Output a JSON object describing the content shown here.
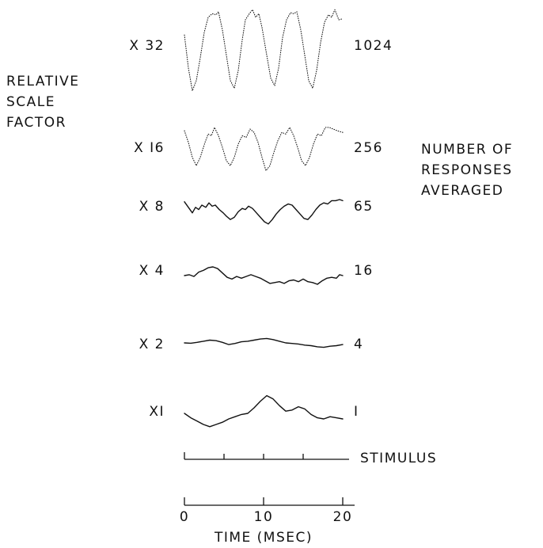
{
  "chart_data": {
    "type": "line",
    "left_title": [
      "RELATIVE",
      "SCALE",
      "FACTOR"
    ],
    "right_title": [
      "NUMBER OF",
      "RESPONSES",
      "AVERAGED"
    ],
    "xlabel": "TIME (MSEC)",
    "xlim": [
      0,
      20
    ],
    "x_ticks": [
      "0",
      "10",
      "20"
    ],
    "stimulus_label": "STIMULUS",
    "stimulus_ticks_ms": [
      5,
      10,
      15
    ],
    "series": [
      {
        "scale_label": "X 32",
        "count_label": "1024",
        "points": [
          [
            0,
            0.2
          ],
          [
            0.5,
            -0.45
          ],
          [
            1,
            -0.9
          ],
          [
            1.5,
            -0.7
          ],
          [
            2,
            -0.25
          ],
          [
            2.5,
            0.25
          ],
          [
            3,
            0.55
          ],
          [
            3.5,
            0.62
          ],
          [
            4,
            0.6
          ],
          [
            4.3,
            0.66
          ],
          [
            4.8,
            0.3
          ],
          [
            5.3,
            -0.2
          ],
          [
            5.8,
            -0.7
          ],
          [
            6.3,
            -0.85
          ],
          [
            6.8,
            -0.5
          ],
          [
            7.3,
            0.1
          ],
          [
            7.7,
            0.5
          ],
          [
            8.2,
            0.62
          ],
          [
            8.6,
            0.7
          ],
          [
            9,
            0.55
          ],
          [
            9.4,
            0.62
          ],
          [
            9.8,
            0.35
          ],
          [
            10.4,
            -0.2
          ],
          [
            10.9,
            -0.65
          ],
          [
            11.4,
            -0.8
          ],
          [
            11.9,
            -0.45
          ],
          [
            12.4,
            0.15
          ],
          [
            12.9,
            0.5
          ],
          [
            13.4,
            0.64
          ],
          [
            13.8,
            0.62
          ],
          [
            14.2,
            0.66
          ],
          [
            14.7,
            0.3
          ],
          [
            15.2,
            -0.2
          ],
          [
            15.7,
            -0.7
          ],
          [
            16.2,
            -0.85
          ],
          [
            16.7,
            -0.5
          ],
          [
            17.2,
            0.05
          ],
          [
            17.7,
            0.45
          ],
          [
            18.2,
            0.6
          ],
          [
            18.6,
            0.55
          ],
          [
            19,
            0.7
          ],
          [
            19.5,
            0.5
          ],
          [
            20,
            0.52
          ]
        ]
      },
      {
        "scale_label": "X I6",
        "count_label": "256",
        "points": [
          [
            0,
            0.45
          ],
          [
            0.5,
            0.1
          ],
          [
            1,
            -0.35
          ],
          [
            1.5,
            -0.6
          ],
          [
            2,
            -0.35
          ],
          [
            2.6,
            0.1
          ],
          [
            3,
            0.35
          ],
          [
            3.4,
            0.3
          ],
          [
            3.8,
            0.55
          ],
          [
            4.3,
            0.3
          ],
          [
            4.8,
            -0.05
          ],
          [
            5.3,
            -0.45
          ],
          [
            5.8,
            -0.6
          ],
          [
            6.3,
            -0.35
          ],
          [
            6.8,
            0.05
          ],
          [
            7.3,
            0.3
          ],
          [
            7.8,
            0.25
          ],
          [
            8.3,
            0.5
          ],
          [
            8.8,
            0.4
          ],
          [
            9.3,
            0.1
          ],
          [
            9.8,
            -0.35
          ],
          [
            10.3,
            -0.75
          ],
          [
            10.8,
            -0.6
          ],
          [
            11.3,
            -0.2
          ],
          [
            11.8,
            0.15
          ],
          [
            12.3,
            0.4
          ],
          [
            12.8,
            0.35
          ],
          [
            13.3,
            0.55
          ],
          [
            13.8,
            0.3
          ],
          [
            14.3,
            -0.05
          ],
          [
            14.8,
            -0.45
          ],
          [
            15.3,
            -0.6
          ],
          [
            15.8,
            -0.35
          ],
          [
            16.3,
            0.05
          ],
          [
            16.8,
            0.35
          ],
          [
            17.3,
            0.3
          ],
          [
            17.8,
            0.55
          ],
          [
            18.3,
            0.55
          ],
          [
            18.8,
            0.5
          ],
          [
            19.3,
            0.45
          ],
          [
            20,
            0.4
          ]
        ]
      },
      {
        "scale_label": "X 8",
        "count_label": "65",
        "points": [
          [
            0,
            0.4
          ],
          [
            0.5,
            0.15
          ],
          [
            1,
            -0.1
          ],
          [
            1.4,
            0.15
          ],
          [
            1.8,
            0.05
          ],
          [
            2.2,
            0.25
          ],
          [
            2.7,
            0.15
          ],
          [
            3.1,
            0.35
          ],
          [
            3.5,
            0.2
          ],
          [
            3.9,
            0.25
          ],
          [
            4.4,
            0.05
          ],
          [
            4.9,
            -0.1
          ],
          [
            5.3,
            -0.25
          ],
          [
            5.8,
            -0.4
          ],
          [
            6.3,
            -0.3
          ],
          [
            6.8,
            -0.05
          ],
          [
            7.3,
            0.1
          ],
          [
            7.7,
            0.05
          ],
          [
            8.1,
            0.2
          ],
          [
            8.6,
            0.1
          ],
          [
            9.1,
            -0.1
          ],
          [
            9.6,
            -0.3
          ],
          [
            10.1,
            -0.5
          ],
          [
            10.6,
            -0.6
          ],
          [
            11.1,
            -0.4
          ],
          [
            11.6,
            -0.15
          ],
          [
            12.1,
            0.05
          ],
          [
            12.6,
            0.2
          ],
          [
            13.1,
            0.3
          ],
          [
            13.6,
            0.25
          ],
          [
            14.1,
            0.05
          ],
          [
            14.6,
            -0.15
          ],
          [
            15.1,
            -0.35
          ],
          [
            15.6,
            -0.4
          ],
          [
            16.1,
            -0.2
          ],
          [
            16.6,
            0.05
          ],
          [
            17.1,
            0.25
          ],
          [
            17.6,
            0.35
          ],
          [
            18.1,
            0.3
          ],
          [
            18.6,
            0.45
          ],
          [
            19.1,
            0.45
          ],
          [
            19.6,
            0.5
          ],
          [
            20,
            0.45
          ]
        ]
      },
      {
        "scale_label": "X 4",
        "count_label": "16",
        "points": [
          [
            0,
            0
          ],
          [
            0.6,
            0.05
          ],
          [
            1.2,
            -0.05
          ],
          [
            1.8,
            0.2
          ],
          [
            2.4,
            0.3
          ],
          [
            3,
            0.45
          ],
          [
            3.6,
            0.5
          ],
          [
            4.2,
            0.4
          ],
          [
            4.8,
            0.15
          ],
          [
            5.4,
            -0.1
          ],
          [
            6,
            -0.2
          ],
          [
            6.6,
            -0.05
          ],
          [
            7.2,
            -0.15
          ],
          [
            7.8,
            -0.05
          ],
          [
            8.4,
            0.05
          ],
          [
            9,
            -0.05
          ],
          [
            9.6,
            -0.15
          ],
          [
            10.2,
            -0.3
          ],
          [
            10.8,
            -0.45
          ],
          [
            11.4,
            -0.4
          ],
          [
            12,
            -0.35
          ],
          [
            12.6,
            -0.45
          ],
          [
            13.2,
            -0.3
          ],
          [
            13.8,
            -0.25
          ],
          [
            14.4,
            -0.35
          ],
          [
            15,
            -0.2
          ],
          [
            15.6,
            -0.35
          ],
          [
            16.2,
            -0.4
          ],
          [
            16.8,
            -0.5
          ],
          [
            17.4,
            -0.3
          ],
          [
            18,
            -0.15
          ],
          [
            18.6,
            -0.1
          ],
          [
            19.2,
            -0.15
          ],
          [
            19.6,
            0.05
          ],
          [
            20,
            0
          ]
        ]
      },
      {
        "scale_label": "X 2",
        "count_label": "4",
        "points": [
          [
            0,
            0
          ],
          [
            0.8,
            -0.03
          ],
          [
            1.6,
            0.05
          ],
          [
            2.4,
            0.15
          ],
          [
            3.2,
            0.25
          ],
          [
            4,
            0.2
          ],
          [
            4.8,
            0.05
          ],
          [
            5.6,
            -0.15
          ],
          [
            6.4,
            -0.05
          ],
          [
            7.2,
            0.1
          ],
          [
            8,
            0.15
          ],
          [
            8.8,
            0.25
          ],
          [
            9.6,
            0.35
          ],
          [
            10.4,
            0.4
          ],
          [
            11.2,
            0.3
          ],
          [
            12,
            0.15
          ],
          [
            12.8,
            0
          ],
          [
            13.6,
            -0.05
          ],
          [
            14.4,
            -0.1
          ],
          [
            15.2,
            -0.2
          ],
          [
            16,
            -0.25
          ],
          [
            16.8,
            -0.35
          ],
          [
            17.6,
            -0.4
          ],
          [
            18.4,
            -0.3
          ],
          [
            19.2,
            -0.25
          ],
          [
            20,
            -0.15
          ]
        ]
      },
      {
        "scale_label": "XI",
        "count_label": "I",
        "points": [
          [
            0,
            0
          ],
          [
            0.8,
            -0.2
          ],
          [
            1.6,
            -0.35
          ],
          [
            2.4,
            -0.5
          ],
          [
            3.2,
            -0.6
          ],
          [
            4,
            -0.5
          ],
          [
            4.8,
            -0.4
          ],
          [
            5.6,
            -0.25
          ],
          [
            6.4,
            -0.15
          ],
          [
            7.2,
            -0.05
          ],
          [
            8,
            0
          ],
          [
            8.8,
            0.25
          ],
          [
            9.6,
            0.55
          ],
          [
            10.4,
            0.8
          ],
          [
            11.2,
            0.65
          ],
          [
            12,
            0.35
          ],
          [
            12.8,
            0.1
          ],
          [
            13.6,
            0.15
          ],
          [
            14.4,
            0.3
          ],
          [
            15.2,
            0.2
          ],
          [
            16,
            -0.05
          ],
          [
            16.8,
            -0.2
          ],
          [
            17.6,
            -0.25
          ],
          [
            18.4,
            -0.15
          ],
          [
            19.2,
            -0.2
          ],
          [
            20,
            -0.25
          ]
        ]
      }
    ]
  }
}
